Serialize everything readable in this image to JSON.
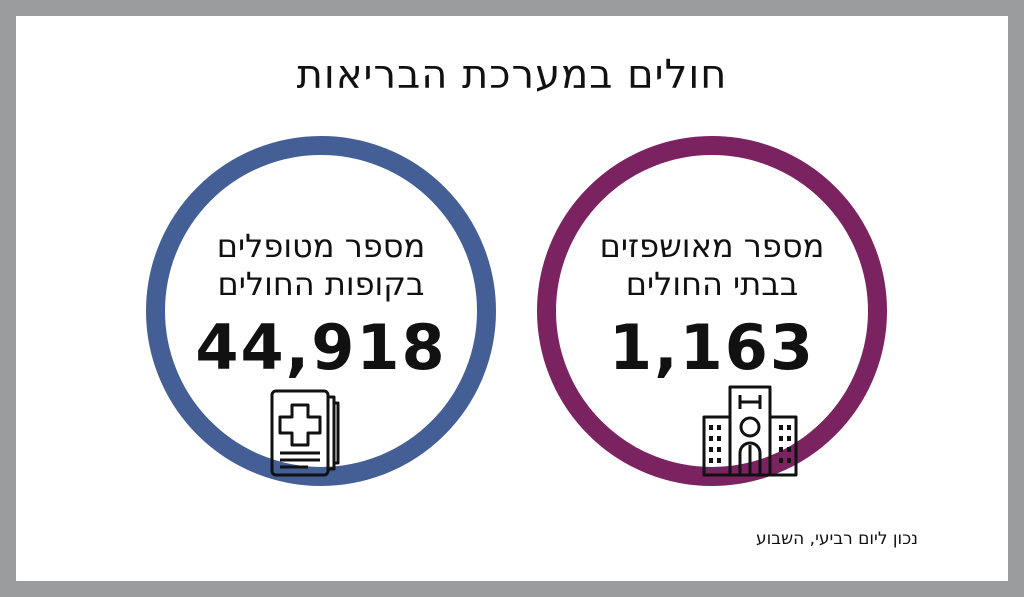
{
  "title": "חולים במערכת הבריאות",
  "left_stat": {
    "label_line1": "מספר מטופלים",
    "label_line2": "בקופות החולים",
    "value": "44,918",
    "icon": "medical-record-icon",
    "color": "#445f96"
  },
  "right_stat": {
    "label_line1": "מספר מאושפזים",
    "label_line2": "בבתי החולים",
    "value": "1,163",
    "icon": "hospital-building-icon",
    "color": "#7b2260"
  },
  "footer": "נכון ליום רביעי, השבוע"
}
